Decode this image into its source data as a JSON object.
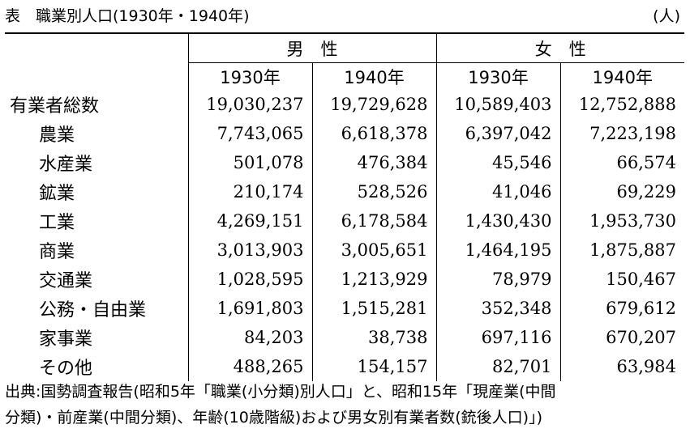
{
  "caption": {
    "title": "表　職業別人口(1930年・1940年)",
    "unit": "(人)"
  },
  "header": {
    "male": "男　性",
    "female": "女　性",
    "year_1930": "1930年",
    "year_1940": "1940年"
  },
  "rows": [
    {
      "label": "有業者総数",
      "m1930": "19,030,237",
      "m1940": "19,729,628",
      "f1930": "10,589,403",
      "f1940": "12,752,888"
    },
    {
      "label": "農業",
      "m1930": "7,743,065",
      "m1940": "6,618,378",
      "f1930": "6,397,042",
      "f1940": "7,223,198"
    },
    {
      "label": "水産業",
      "m1930": "501,078",
      "m1940": "476,384",
      "f1930": "45,546",
      "f1940": "66,574"
    },
    {
      "label": "鉱業",
      "m1930": "210,174",
      "m1940": "528,526",
      "f1930": "41,046",
      "f1940": "69,229"
    },
    {
      "label": "工業",
      "m1930": "4,269,151",
      "m1940": "6,178,584",
      "f1930": "1,430,430",
      "f1940": "1,953,730"
    },
    {
      "label": "商業",
      "m1930": "3,013,903",
      "m1940": "3,005,651",
      "f1930": "1,464,195",
      "f1940": "1,875,887"
    },
    {
      "label": "交通業",
      "m1930": "1,028,595",
      "m1940": "1,213,929",
      "f1930": "78,979",
      "f1940": "150,467"
    },
    {
      "label": "公務・自由業",
      "m1930": "1,691,803",
      "m1940": "1,515,281",
      "f1930": "352,348",
      "f1940": "679,612"
    },
    {
      "label": "家事業",
      "m1930": "84,203",
      "m1940": "38,738",
      "f1930": "697,116",
      "f1940": "670,207"
    },
    {
      "label": "その他",
      "m1930": "488,265",
      "m1940": "154,157",
      "f1930": "82,701",
      "f1940": "63,984"
    }
  ],
  "source": {
    "line1": "出典:国勢調査報告(昭和5年「職業(小分類)別人口」と、昭和15年「現産業(中間",
    "line2": "分類)・前産業(中間分類)、年齢(10歳階級)および男女別有業者数(銃後人口)」)"
  }
}
